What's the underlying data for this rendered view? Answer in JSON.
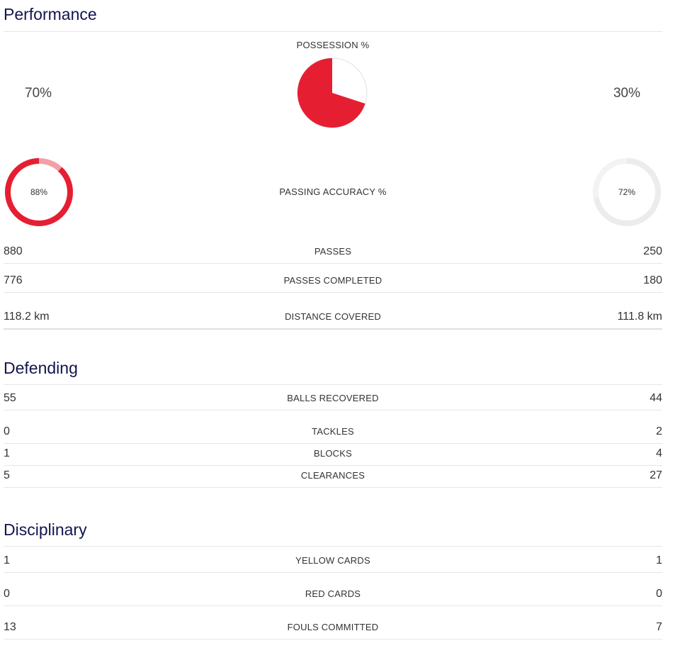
{
  "colors": {
    "heading": "#141450",
    "accent_red": "#e61e32",
    "accent_red_light": "#f2a0a8",
    "ring_light": "#eeeeee",
    "divider": "#e6e6e6"
  },
  "performance": {
    "title": "Performance",
    "possession": {
      "label": "POSSESSION %",
      "left": "70%",
      "right": "30%",
      "left_fraction": 0.7,
      "right_fraction": 0.3
    },
    "passing_accuracy": {
      "label": "PASSING ACCURACY %",
      "left": "88%",
      "right": "72%",
      "left_fraction": 0.88,
      "right_fraction": 0.72
    },
    "rows": [
      {
        "label": "PASSES",
        "left": "880",
        "right": "250"
      },
      {
        "label": "PASSES COMPLETED",
        "left": "776",
        "right": "180"
      },
      {
        "label": "DISTANCE COVERED",
        "left": "118.2 km",
        "right": "111.8 km"
      }
    ]
  },
  "defending": {
    "title": "Defending",
    "rows": [
      {
        "label": "BALLS RECOVERED",
        "left": "55",
        "right": "44"
      },
      {
        "label": "TACKLES",
        "left": "0",
        "right": "2"
      },
      {
        "label": "BLOCKS",
        "left": "1",
        "right": "4"
      },
      {
        "label": "CLEARANCES",
        "left": "5",
        "right": "27"
      }
    ]
  },
  "disciplinary": {
    "title": "Disciplinary",
    "rows": [
      {
        "label": "YELLOW CARDS",
        "left": "1",
        "right": "1"
      },
      {
        "label": "RED CARDS",
        "left": "0",
        "right": "0"
      },
      {
        "label": "FOULS COMMITTED",
        "left": "13",
        "right": "7"
      }
    ]
  }
}
